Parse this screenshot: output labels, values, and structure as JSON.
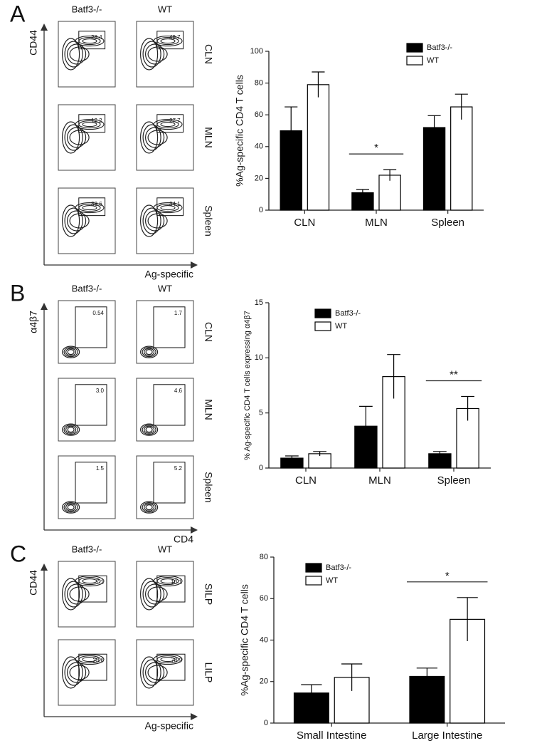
{
  "panels": [
    {
      "letter": "A",
      "columns": [
        "Batf3-/-",
        "WT"
      ],
      "rows": [
        "CLN",
        "MLN",
        "Spleen"
      ],
      "y_label": "CD44",
      "x_label": "Ag-specific",
      "gates": [
        [
          "28.4",
          "49.7"
        ],
        [
          "12.2",
          "27.7"
        ],
        [
          "38.6",
          "34.1"
        ]
      ]
    },
    {
      "letter": "B",
      "columns": [
        "Batf3-/-",
        "WT"
      ],
      "rows": [
        "CLN",
        "MLN",
        "Spleen"
      ],
      "y_label": "α4β7",
      "x_label": "CD4",
      "gates": [
        [
          "0.54",
          "1.7"
        ],
        [
          "3.0",
          "4.6"
        ],
        [
          "1.5",
          "5.2"
        ]
      ]
    },
    {
      "letter": "C",
      "columns": [
        "Batf3-/-",
        "WT"
      ],
      "rows": [
        "SILP",
        "LILP"
      ],
      "y_label": "CD44",
      "x_label": "Ag-specific",
      "gates": [
        [
          "7.1",
          "10.1"
        ],
        [
          "23.6",
          "78.9"
        ]
      ]
    }
  ],
  "chart_data": [
    {
      "type": "bar",
      "y_label": "%Ag-specific CD4 T cells",
      "categories": [
        "CLN",
        "MLN",
        "Spleen"
      ],
      "series": [
        {
          "name": "Batf3-/-",
          "color": "#000000",
          "values": [
            50,
            11,
            52
          ],
          "errors": [
            15,
            2,
            7.5
          ]
        },
        {
          "name": "WT",
          "color": "#ffffff",
          "values": [
            79,
            22,
            65
          ],
          "errors": [
            8,
            3.5,
            8
          ]
        }
      ],
      "ylim": [
        0,
        100
      ],
      "yticks": [
        0,
        20,
        40,
        60,
        80,
        100
      ],
      "annotations": [
        {
          "text": "*",
          "category": "MLN"
        }
      ]
    },
    {
      "type": "bar",
      "y_label": "% Ag-specific CD4 T cells expressing α4β7",
      "categories": [
        "CLN",
        "MLN",
        "Spleen"
      ],
      "series": [
        {
          "name": "Batf3-/-",
          "color": "#000000",
          "values": [
            0.9,
            3.8,
            1.3
          ],
          "errors": [
            0.2,
            1.8,
            0.2
          ]
        },
        {
          "name": "WT",
          "color": "#ffffff",
          "values": [
            1.3,
            8.3,
            5.4
          ],
          "errors": [
            0.2,
            2.0,
            1.1
          ]
        }
      ],
      "ylim": [
        0,
        15
      ],
      "yticks": [
        0,
        5,
        10,
        15
      ],
      "annotations": [
        {
          "text": "**",
          "category": "Spleen"
        }
      ]
    },
    {
      "type": "bar",
      "y_label": "%Ag-specific CD4 T cells",
      "categories": [
        "Small Intestine",
        "Large Intestine"
      ],
      "series": [
        {
          "name": "Batf3-/-",
          "color": "#000000",
          "values": [
            14.5,
            22.5
          ],
          "errors": [
            4,
            4
          ]
        },
        {
          "name": "WT",
          "color": "#ffffff",
          "values": [
            22,
            50
          ],
          "errors": [
            6.5,
            10.5
          ]
        }
      ],
      "ylim": [
        0,
        80
      ],
      "yticks": [
        0,
        20,
        40,
        60,
        80
      ],
      "annotations": [
        {
          "text": "*",
          "category": "Large Intestine"
        }
      ]
    }
  ]
}
